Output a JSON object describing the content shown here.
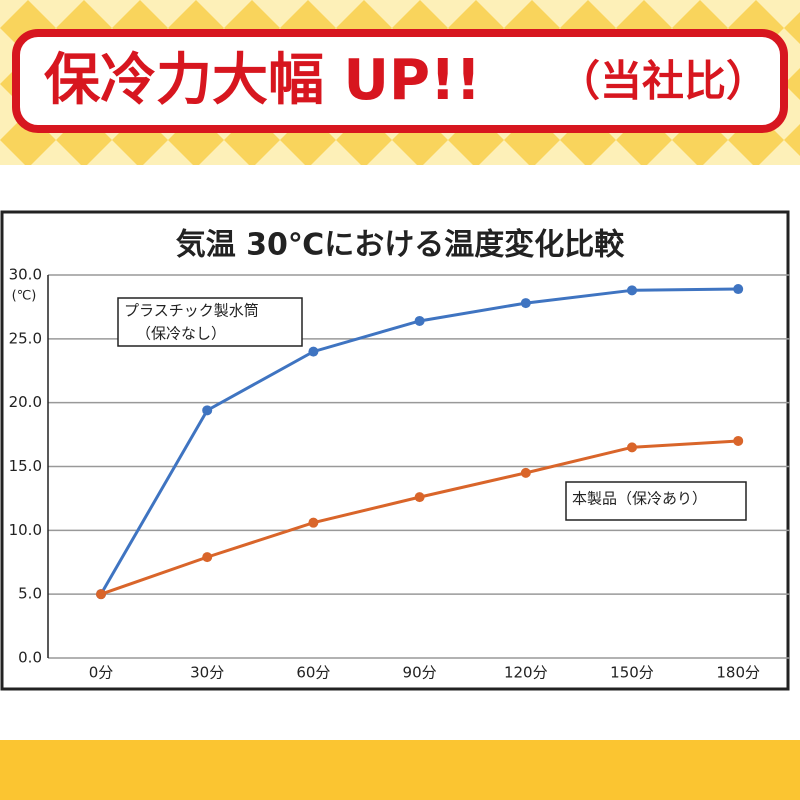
{
  "header": {
    "title": "保冷力大幅 UP!!",
    "note": "（当社比）"
  },
  "chart_data": {
    "type": "line",
    "title": "気温 30℃における温度変化比較",
    "y_unit": "(℃)",
    "categories": [
      "0分",
      "30分",
      "60分",
      "90分",
      "120分",
      "150分",
      "180分"
    ],
    "series": [
      {
        "name": "プラスチック製水筒",
        "subname": "（保冷なし）",
        "color": "#3f74c1",
        "values": [
          5,
          19.4,
          24.0,
          26.4,
          27.8,
          28.8,
          28.9
        ]
      },
      {
        "name": "本製品（保冷あり）",
        "color": "#d9652a",
        "values": [
          5,
          7.9,
          10.6,
          12.6,
          14.5,
          16.5,
          17.0
        ]
      }
    ],
    "ylim": [
      0,
      30
    ],
    "yticks": [
      {
        "value": 0,
        "label": "0.0"
      },
      {
        "value": 5,
        "label": "5.0"
      },
      {
        "value": 10,
        "label": "10.0"
      },
      {
        "value": 15,
        "label": "15.0"
      },
      {
        "value": 20,
        "label": "20.0"
      },
      {
        "value": 25,
        "label": "25.0"
      },
      {
        "value": 30,
        "label": "30.0"
      }
    ],
    "grid": true
  }
}
